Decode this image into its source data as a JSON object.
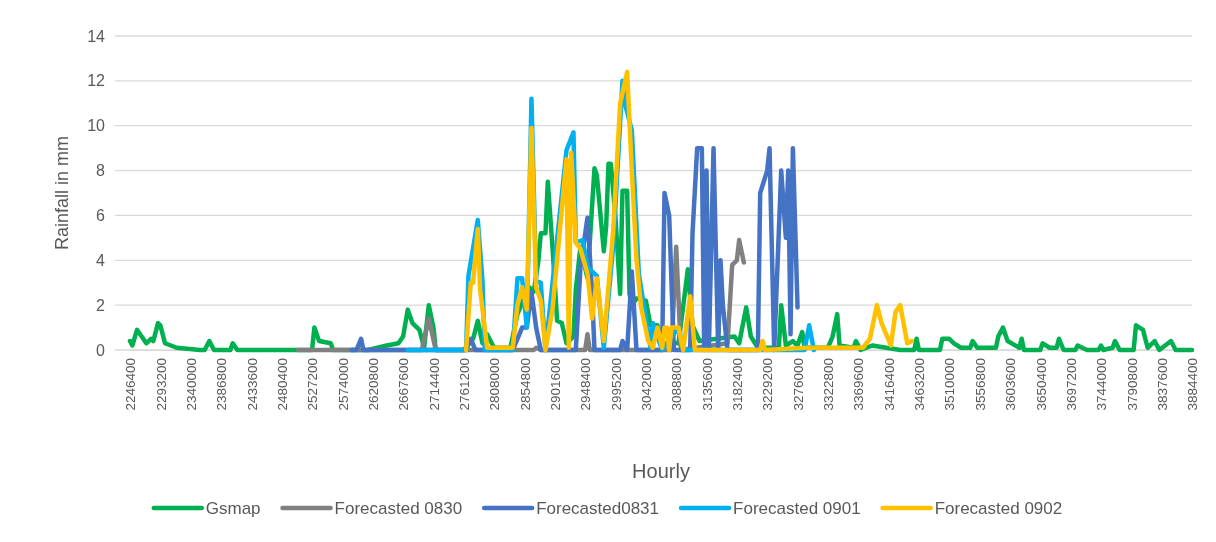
{
  "chart_data": {
    "type": "line",
    "xlabel": "Hourly",
    "ylabel": "Rainfall in mm",
    "xlim": [
      2246400,
      3884400
    ],
    "xticks": [
      2246400,
      2293200,
      2340000,
      2386800,
      2433600,
      2480400,
      2527200,
      2574000,
      2620800,
      2667600,
      2714400,
      2761200,
      2808000,
      2854800,
      2901600,
      2948400,
      2995200,
      3042000,
      3088800,
      3135600,
      3182400,
      3229200,
      3276000,
      3322800,
      3369600,
      3416400,
      3463200,
      3510000,
      3556800,
      3603600,
      3650400,
      3697200,
      3744000,
      3790800,
      3837600,
      3884400
    ],
    "ylim": [
      0,
      14
    ],
    "yticks": [
      0,
      2,
      4,
      6,
      8,
      10,
      12,
      14
    ],
    "grid": "y",
    "legend": "bottom",
    "marker": "none",
    "line_style": "solid",
    "series": [
      {
        "name": "Gsmap",
        "color": "#00b050",
        "x": [
          2246400,
          2250000,
          2257200,
          2271600,
          2278800,
          2282400,
          2289600,
          2293200,
          2300400,
          2318400,
          2354400,
          2361600,
          2368800,
          2376000,
          2401200,
          2404800,
          2412000,
          2498400,
          2527200,
          2530800,
          2538000,
          2556000,
          2559600,
          2613600,
          2642400,
          2660400,
          2667600,
          2674800,
          2682000,
          2692800,
          2700000,
          2707200,
          2714400,
          2718000,
          2761200,
          2775600,
          2782800,
          2790000,
          2797200,
          2808000,
          2833200,
          2844000,
          2851200,
          2862000,
          2869200,
          2876400,
          2880000,
          2887200,
          2890800,
          2898000,
          2905200,
          2912400,
          2919600,
          2930400,
          2934000,
          2941200,
          2952000,
          2962800,
          2966400,
          2977200,
          2980800,
          2984400,
          2988000,
          2995200,
          3002400,
          3006000,
          3013200,
          3016800,
          3020400,
          3027600,
          3042000,
          3049200,
          3060000,
          3067200,
          3092400,
          3106800,
          3114000,
          3124800,
          3178800,
          3186000,
          3196800,
          3204000,
          3214800,
          3240000,
          3247200,
          3250800,
          3258000,
          3268800,
          3276000,
          3283200,
          3286800,
          3322800,
          3330000,
          3337200,
          3340800,
          3362400,
          3366000,
          3373200,
          3391200,
          3434400,
          3456000,
          3459600,
          3463200,
          3495600,
          3499200,
          3510000,
          3517200,
          3528000,
          3542400,
          3546000,
          3553200,
          3582000,
          3585600,
          3592800,
          3600000,
          3618000,
          3621600,
          3625200,
          3650400,
          3654000,
          3664800,
          3675600,
          3679200,
          3686400,
          3704400,
          3708000,
          3722400,
          3740400,
          3744000,
          3747600,
          3762000,
          3765600,
          3772800,
          3787200,
          3794400,
          3798000,
          3808800,
          3816000,
          3826800,
          3834000,
          3852000,
          3859200,
          3884400
        ],
        "values": [
          0.4,
          0.2,
          0.9,
          0.3,
          0.5,
          0.4,
          1.2,
          1.1,
          0.3,
          0.1,
          0,
          0,
          0.4,
          0,
          0,
          0.3,
          0,
          0,
          0,
          1.0,
          0.4,
          0.3,
          0,
          0,
          0.2,
          0.3,
          0.6,
          1.8,
          1.2,
          0.9,
          0.1,
          2.0,
          1.0,
          0,
          0,
          0.5,
          1.3,
          0.3,
          0.7,
          0.1,
          0.1,
          1.6,
          2.1,
          2.8,
          2.6,
          4.0,
          5.2,
          5.2,
          7.5,
          4.6,
          1.3,
          1.2,
          0.3,
          0.6,
          2.7,
          4.6,
          3.2,
          8.1,
          7.8,
          4.4,
          5.5,
          8.3,
          8.3,
          5.9,
          2.5,
          7.1,
          7.1,
          2.5,
          2.0,
          2.3,
          2.2,
          1.1,
          1.1,
          0.3,
          0.3,
          3.6,
          1.1,
          0.4,
          0.6,
          0.3,
          1.9,
          0.6,
          0.1,
          0.1,
          0.1,
          2.0,
          0.2,
          0.4,
          0.2,
          0.8,
          0.1,
          0.1,
          0.6,
          1.6,
          0.2,
          0.1,
          0.4,
          0,
          0.2,
          0,
          0,
          0.5,
          0,
          0,
          0.5,
          0.5,
          0.3,
          0.1,
          0.1,
          0.4,
          0.1,
          0.1,
          0.6,
          1.0,
          0.4,
          0.1,
          0.5,
          0,
          0,
          0.3,
          0.1,
          0.1,
          0.5,
          0,
          0,
          0.2,
          0,
          0,
          0.2,
          0,
          0.1,
          0.4,
          0,
          0,
          0,
          1.1,
          0.9,
          0.1,
          0.4,
          0,
          0.4,
          0,
          0
        ]
      },
      {
        "name": "Forecasted 0830",
        "color": "#808080",
        "x": [
          2505600,
          2696400,
          2707200,
          2718000,
          2869200,
          2872800,
          2880000,
          2948400,
          2952000,
          2955600,
          3081600,
          3088800,
          3096000,
          3168000,
          3175200,
          3182400,
          3186000,
          3193200
        ],
        "values": [
          0,
          0,
          1.4,
          0,
          0,
          0.1,
          0,
          0,
          0.7,
          0,
          0,
          4.6,
          0,
          0.3,
          3.8,
          4.0,
          4.9,
          3.9
        ]
      },
      {
        "name": "Forecasted0831",
        "color": "#4472c4",
        "x": [
          2588400,
          2595600,
          2602800,
          2606400,
          2764800,
          2772000,
          2779200,
          2836800,
          2844000,
          2851200,
          2858400,
          2865600,
          2872800,
          2880000,
          2934000,
          2941200,
          2952000,
          2959200,
          2962800,
          3002400,
          3006000,
          3013200,
          3020400,
          3027600,
          3067200,
          3070800,
          3078000,
          3085200,
          3110400,
          3114000,
          3121200,
          3128400,
          3132000,
          3135600,
          3139200,
          3146400,
          3153600,
          3157200,
          3160800,
          3168000,
          3214800,
          3218400,
          3229200,
          3232800,
          3240000,
          3250800,
          3258000,
          3261600,
          3265200,
          3268800,
          3276000
        ],
        "values": [
          0,
          0,
          0.5,
          0,
          0,
          0.5,
          0,
          0,
          0.5,
          1.0,
          1.0,
          2.6,
          1.0,
          0,
          0,
          3.7,
          5.9,
          2.5,
          0,
          0,
          0.4,
          0,
          3.5,
          0,
          0,
          7.0,
          6.0,
          0,
          0,
          5.2,
          9.0,
          9.0,
          0,
          8.0,
          0,
          9.0,
          0,
          4.0,
          2.0,
          0,
          0,
          7.0,
          8.0,
          9.0,
          0,
          8.0,
          5.0,
          8.0,
          0.7,
          9.0,
          1.9
        ]
      },
      {
        "name": "Forecasted 0901",
        "color": "#00b0f0",
        "x": [
          2674800,
          2764800,
          2768400,
          2782800,
          2790000,
          2793600,
          2836800,
          2844000,
          2851200,
          2858400,
          2865600,
          2872800,
          2880000,
          2887200,
          2919600,
          2930400,
          2934000,
          2944800,
          2952000,
          2966400,
          2977200,
          2991600,
          3006000,
          3009600,
          3020400,
          3031200,
          3049200,
          3052800,
          3067200,
          3092400,
          3099600,
          3286800,
          3294000,
          3301200
        ],
        "values": [
          0,
          0,
          3.3,
          5.8,
          3.1,
          0,
          0,
          3.2,
          3.2,
          1.0,
          11.2,
          3.1,
          3.0,
          0,
          8.9,
          9.7,
          4.8,
          4.9,
          3.7,
          3.3,
          0.1,
          4.6,
          12.0,
          11.0,
          9.8,
          3.4,
          0.1,
          1.2,
          0,
          1.0,
          0,
          0,
          1.1,
          0
        ]
      },
      {
        "name": "Forecasted 0902",
        "color": "#ffc000",
        "x": [
          2764800,
          2772000,
          2775600,
          2782800,
          2786400,
          2797200,
          2836800,
          2844000,
          2851200,
          2858400,
          2865600,
          2872800,
          2880000,
          2887200,
          2898000,
          2919600,
          2923200,
          2926800,
          2934000,
          2941200,
          2952000,
          2959200,
          2966400,
          2977200,
          2991600,
          3002400,
          3013200,
          3020400,
          3027600,
          3034800,
          3045600,
          3052800,
          3060000,
          3067200,
          3070800,
          3074400,
          3078000,
          3081600,
          3092400,
          3099600,
          3110400,
          3117600,
          3218400,
          3222000,
          3225600,
          3290400,
          3376800,
          3387600,
          3398400,
          3405600,
          3420000,
          3427200,
          3434400,
          3445200,
          3452400
        ],
        "values": [
          0,
          3.0,
          3.0,
          5.4,
          2.7,
          0.1,
          0.1,
          2.0,
          2.8,
          1.8,
          9.9,
          2.8,
          2.2,
          0,
          1.8,
          8.5,
          0.1,
          8.8,
          4.8,
          4.5,
          3.4,
          1.4,
          3.2,
          0.4,
          5.3,
          11.0,
          12.4,
          8.0,
          4.0,
          1.9,
          0.4,
          0.1,
          1.0,
          0.1,
          1.0,
          1.0,
          0,
          1.0,
          1.0,
          0,
          2.4,
          0,
          0,
          0.4,
          0,
          0.1,
          0.1,
          0.5,
          2.0,
          1.2,
          0.2,
          1.7,
          2.0,
          0.3,
          0.4
        ]
      }
    ]
  }
}
